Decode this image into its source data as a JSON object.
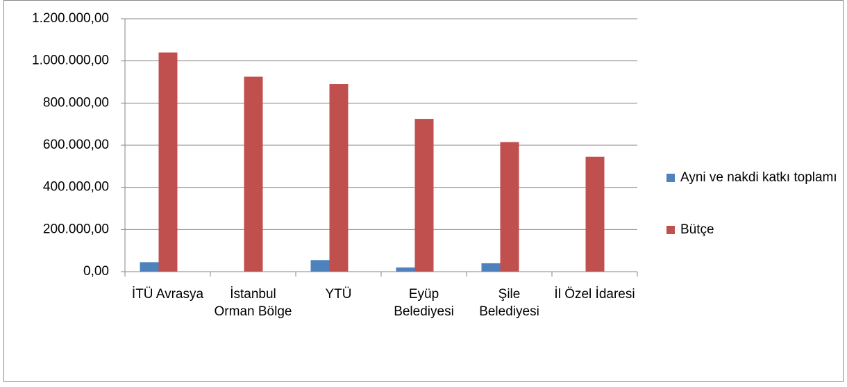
{
  "chart_data": {
    "type": "bar",
    "categories": [
      "İTÜ Avrasya",
      "İstanbul Orman Bölge",
      "YTÜ",
      "Eyüp Belediyesi",
      "Şile Belediyesi",
      "İl Özel İdaresi"
    ],
    "series": [
      {
        "name": "Ayni ve nakdi katkı toplamı",
        "color": "#4f81bd",
        "values": [
          45000,
          0,
          55000,
          20000,
          40000,
          0
        ]
      },
      {
        "name": "Bütçe",
        "color": "#c0504d",
        "values": [
          1040000,
          925000,
          890000,
          725000,
          615000,
          545000
        ]
      }
    ],
    "ylim": [
      0,
      1200000
    ],
    "yticks": [
      {
        "value": 0,
        "label": "0,00"
      },
      {
        "value": 200000,
        "label": "200.000,00"
      },
      {
        "value": 400000,
        "label": "400.000,00"
      },
      {
        "value": 600000,
        "label": "600.000,00"
      },
      {
        "value": 800000,
        "label": "800.000,00"
      },
      {
        "value": 1000000,
        "label": "1.000.000,00"
      },
      {
        "value": 1200000,
        "label": "1.200.000,00"
      }
    ],
    "grid": true,
    "legend": "right"
  }
}
